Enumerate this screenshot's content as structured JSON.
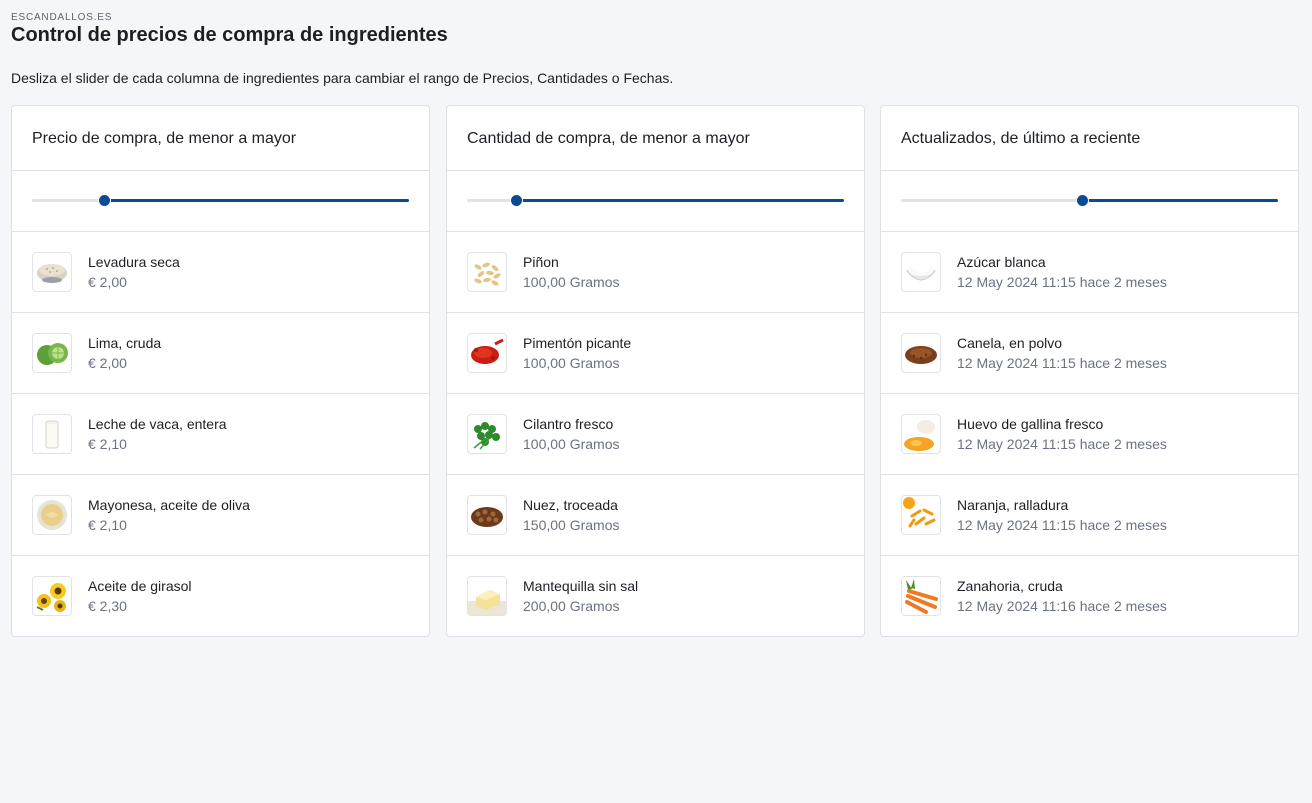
{
  "brand": "ESCANDALLOS.ES",
  "title": "Control de precios de compra de ingredientes",
  "description": "Desliza el slider de cada columna de ingredientes para cambiar el rango de Precios, Cantidades o Fechas.",
  "accent_color": "#0a4b96",
  "columns": [
    {
      "heading": "Precio de compra, de menor a mayor",
      "slider_value_fraction": 0.19,
      "items": [
        {
          "name": "Levadura seca",
          "detail": "€ 2,00",
          "icon": "yeast-bowl-image"
        },
        {
          "name": "Lima, cruda",
          "detail": "€ 2,00",
          "icon": "lime-image"
        },
        {
          "name": "Leche de vaca, entera",
          "detail": "€ 2,10",
          "icon": "milk-glass-image"
        },
        {
          "name": "Mayonesa, aceite de oliva",
          "detail": "€ 2,10",
          "icon": "mayonnaise-bowl-image"
        },
        {
          "name": "Aceite de girasol",
          "detail": "€ 2,30",
          "icon": "sunflower-image"
        }
      ]
    },
    {
      "heading": "Cantidad de compra, de menor a mayor",
      "slider_value_fraction": 0.13,
      "items": [
        {
          "name": "Piñon",
          "detail": "100,00 Gramos",
          "icon": "pine-nuts-image"
        },
        {
          "name": "Pimentón picante",
          "detail": "100,00 Gramos",
          "icon": "paprika-image"
        },
        {
          "name": "Cilantro fresco",
          "detail": "100,00 Gramos",
          "icon": "cilantro-image"
        },
        {
          "name": "Nuez, troceada",
          "detail": "150,00 Gramos",
          "icon": "walnut-image"
        },
        {
          "name": "Mantequilla sin sal",
          "detail": "200,00 Gramos",
          "icon": "butter-image"
        }
      ]
    },
    {
      "heading": "Actualizados, de último a reciente",
      "slider_value_fraction": 0.48,
      "items": [
        {
          "name": "Azúcar blanca",
          "detail": "12 May 2024 11:15 hace 2 meses",
          "icon": "sugar-bowl-image"
        },
        {
          "name": "Canela, en polvo",
          "detail": "12 May 2024 11:15 hace 2 meses",
          "icon": "cinnamon-image"
        },
        {
          "name": "Huevo de gallina fresco",
          "detail": "12 May 2024 11:15 hace 2 meses",
          "icon": "egg-image"
        },
        {
          "name": "Naranja, ralladura",
          "detail": "12 May 2024 11:15 hace 2 meses",
          "icon": "orange-zest-image"
        },
        {
          "name": "Zanahoria, cruda",
          "detail": "12 May 2024 11:16 hace 2 meses",
          "icon": "carrot-image"
        }
      ]
    }
  ]
}
